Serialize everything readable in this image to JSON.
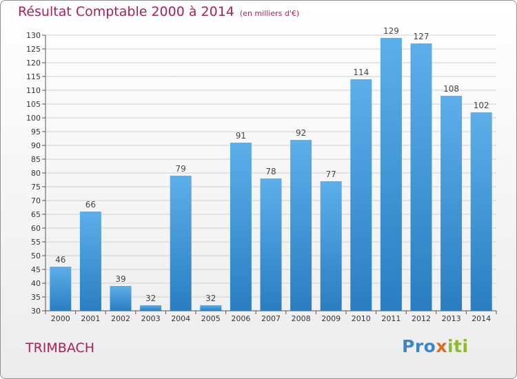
{
  "chart_data": {
    "type": "bar",
    "title": "Résultat Comptable 2000 à 2014",
    "subtitle": "(en milliers d'€)",
    "categories": [
      "2000",
      "2001",
      "2002",
      "2003",
      "2004",
      "2005",
      "2006",
      "2007",
      "2008",
      "2009",
      "2010",
      "2011",
      "2012",
      "2013",
      "2014"
    ],
    "values": [
      46,
      66,
      39,
      32,
      79,
      32,
      91,
      78,
      92,
      77,
      114,
      129,
      127,
      108,
      102
    ],
    "ylim": [
      30,
      130
    ],
    "yticks": [
      30,
      35,
      40,
      45,
      50,
      55,
      60,
      65,
      70,
      75,
      80,
      85,
      90,
      95,
      100,
      105,
      110,
      115,
      120,
      125,
      130
    ],
    "grid": true,
    "legend": "none",
    "colors": {
      "bar_top": "#5dafea",
      "bar_bottom": "#2a7ec0",
      "grid": "#cfcfcf",
      "title": "#b01e55"
    }
  },
  "commune": "TRIMBACH",
  "logo": {
    "part1": "Pro",
    "part2": "x",
    "part3": "iti"
  }
}
